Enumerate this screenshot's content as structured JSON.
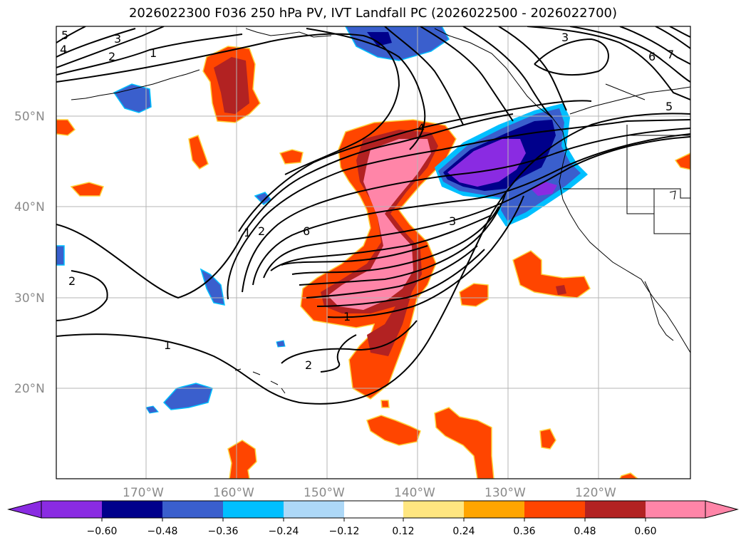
{
  "title": "2026022300 F036 250 hPa PV, IVT Landfall PC (2026022500 - 2026022700)",
  "lat_labels": [
    "50°N",
    "40°N",
    "30°N",
    "20°N"
  ],
  "lon_labels": [
    "170°W",
    "160°W",
    "150°W",
    "140°W",
    "130°W",
    "120°W"
  ],
  "contour_labels": [
    "5",
    "4",
    "3",
    "2",
    "1",
    "3",
    "6",
    "7",
    "5",
    "4",
    "1",
    "2",
    "6",
    "3",
    "2",
    "1",
    "2",
    "1"
  ],
  "colorbar": {
    "ticks": [
      "−0.60",
      "−0.48",
      "−0.36",
      "−0.24",
      "−0.12",
      "0.12",
      "0.24",
      "0.36",
      "0.48",
      "0.60"
    ],
    "colors": [
      "#8a2be2",
      "#00008b",
      "#3a5fcd",
      "#00bfff",
      "#add8f7",
      "#ffffff",
      "#ffe680",
      "#ffa500",
      "#ff4500",
      "#b22222",
      "#ff85a8",
      "#ff85a8"
    ]
  },
  "palette": {
    "neg_strong": "#8a2be2",
    "neg_dark": "#00008b",
    "neg_mid": "#3a5fcd",
    "neg_light": "#00bfff",
    "pos_orange": "#ff4500",
    "pos_red": "#b22222",
    "pos_pink": "#ff85a8"
  }
}
